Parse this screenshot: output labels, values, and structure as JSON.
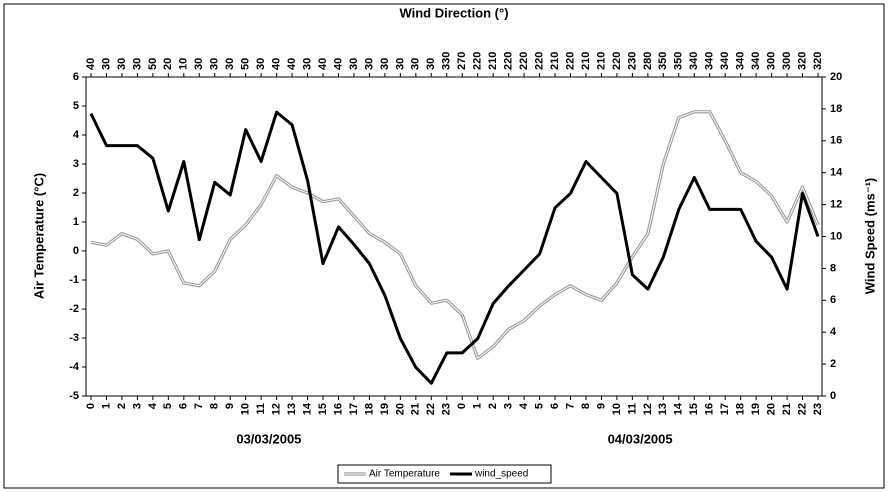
{
  "chart_data": {
    "type": "line",
    "top_axis_label": "Wind Direction (°)",
    "y_label": "Air Temperature (°C)",
    "y2_label": "Wind Speed (ms⁻¹)",
    "categories": [
      "0",
      "1",
      "2",
      "3",
      "4",
      "5",
      "6",
      "7",
      "8",
      "9",
      "10",
      "11",
      "12",
      "13",
      "14",
      "15",
      "16",
      "17",
      "18",
      "19",
      "20",
      "21",
      "22",
      "23",
      "0",
      "1",
      "2",
      "3",
      "4",
      "5",
      "6",
      "7",
      "8",
      "9",
      "10",
      "11",
      "12",
      "13",
      "14",
      "15",
      "16",
      "17",
      "18",
      "19",
      "20",
      "21",
      "22",
      "23"
    ],
    "top_categories": [
      "40",
      "30",
      "30",
      "30",
      "50",
      "20",
      "10",
      "30",
      "30",
      "30",
      "50",
      "30",
      "40",
      "40",
      "30",
      "40",
      "40",
      "30",
      "30",
      "30",
      "30",
      "30",
      "30",
      "330",
      "270",
      "220",
      "210",
      "220",
      "220",
      "220",
      "210",
      "220",
      "210",
      "210",
      "220",
      "230",
      "280",
      "350",
      "350",
      "340",
      "340",
      "340",
      "340",
      "340",
      "300",
      "300",
      "320",
      "320"
    ],
    "groups": [
      "03/03/2005",
      "04/03/2005"
    ],
    "series": [
      {
        "name": "Air Temperature",
        "color": "#999999",
        "values": [
          0.3,
          0.2,
          0.6,
          0.4,
          -0.1,
          0.0,
          -1.1,
          -1.2,
          -0.7,
          0.4,
          0.9,
          1.6,
          2.6,
          2.2,
          2.0,
          1.7,
          1.8,
          1.2,
          0.6,
          0.3,
          -0.1,
          -1.2,
          -1.8,
          -1.7,
          -2.2,
          -3.7,
          -3.3,
          -2.7,
          -2.4,
          -1.9,
          -1.5,
          -1.2,
          -1.5,
          -1.7,
          -1.1,
          -0.2,
          0.6,
          3.0,
          4.6,
          4.8,
          4.8,
          3.8,
          2.7,
          2.4,
          1.9,
          1.0,
          2.2,
          0.9
        ]
      },
      {
        "name": "wind_speed",
        "color": "#000000",
        "axis": "y2",
        "values": [
          17.7,
          15.7,
          15.7,
          15.7,
          14.9,
          11.6,
          14.7,
          9.8,
          13.4,
          12.6,
          16.7,
          14.7,
          17.8,
          17.0,
          13.5,
          8.3,
          10.6,
          9.5,
          8.3,
          6.3,
          3.6,
          1.8,
          0.8,
          2.7,
          2.7,
          3.6,
          5.8,
          6.9,
          7.9,
          8.9,
          11.8,
          12.7,
          14.7,
          13.7,
          12.7,
          7.6,
          6.7,
          8.7,
          11.7,
          13.7,
          11.7,
          11.7,
          11.7,
          9.7,
          8.7,
          6.7,
          12.7,
          10.0
        ]
      }
    ],
    "ylim": [
      -5,
      6
    ],
    "yticks": [
      -5,
      -4,
      -3,
      -2,
      -1,
      0,
      1,
      2,
      3,
      4,
      5,
      6
    ],
    "y2lim": [
      0,
      20
    ],
    "y2ticks": [
      0,
      2,
      4,
      6,
      8,
      10,
      12,
      14,
      16,
      18,
      20
    ],
    "legend": "bottom"
  }
}
